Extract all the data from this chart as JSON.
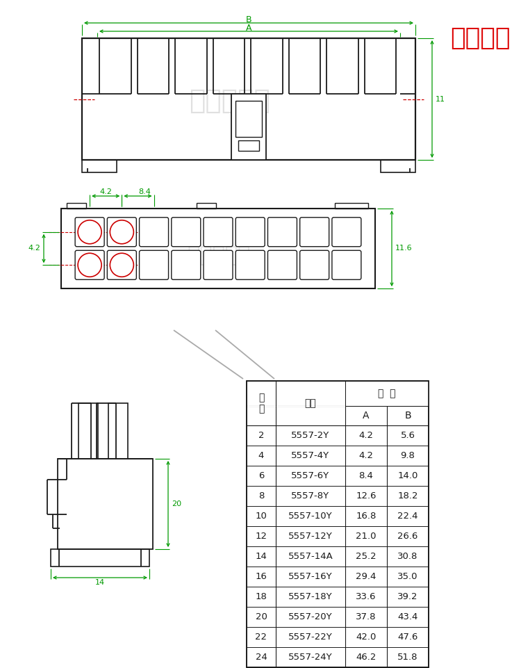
{
  "bg_color": "#ffffff",
  "title_text": "双排公壳",
  "title_color": "#dd0000",
  "watermark": "锦力升电子",
  "green": "#009900",
  "black": "#1a1a1a",
  "red": "#cc0000",
  "light_gray": "#c8c8c8",
  "table_rows": [
    [
      "2",
      "5557-2Y",
      "4.2",
      "5.6"
    ],
    [
      "4",
      "5557-4Y",
      "4.2",
      "9.8"
    ],
    [
      "6",
      "5557-6Y",
      "8.4",
      "14.0"
    ],
    [
      "8",
      "5557-8Y",
      "12.6",
      "18.2"
    ],
    [
      "10",
      "5557-10Y",
      "16.8",
      "22.4"
    ],
    [
      "12",
      "5557-12Y",
      "21.0",
      "26.6"
    ],
    [
      "14",
      "5557-14A",
      "25.2",
      "30.8"
    ],
    [
      "16",
      "5557-16Y",
      "29.4",
      "35.0"
    ],
    [
      "18",
      "5557-18Y",
      "33.6",
      "39.2"
    ],
    [
      "20",
      "5557-20Y",
      "37.8",
      "43.4"
    ],
    [
      "22",
      "5557-22Y",
      "42.0",
      "47.6"
    ],
    [
      "24",
      "5557-24Y",
      "46.2",
      "51.8"
    ]
  ]
}
